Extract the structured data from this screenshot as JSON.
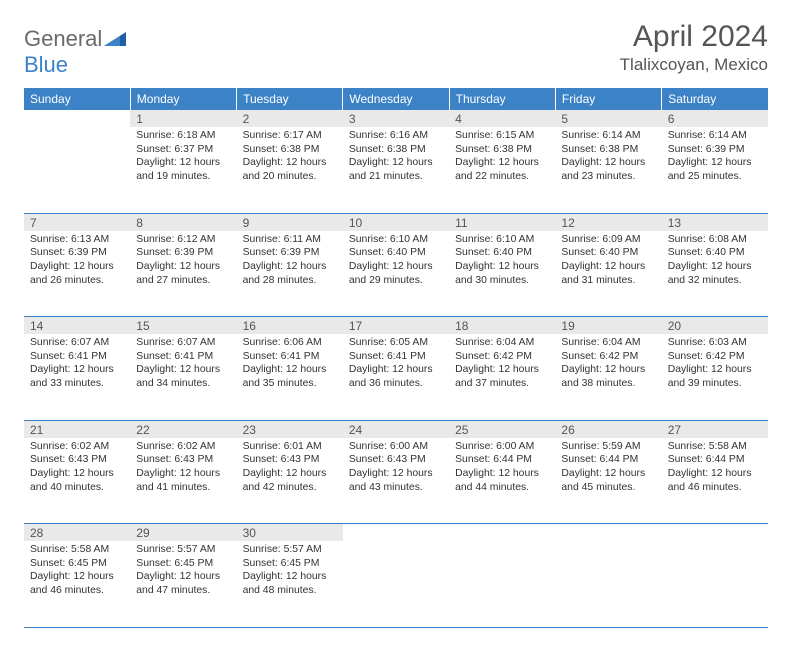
{
  "brand": {
    "part1": "General",
    "part2": "Blue"
  },
  "title": "April 2024",
  "location": "Tlalixcoyan, Mexico",
  "header_bg": "#3c82c7",
  "daynum_bg": "#e9e9e9",
  "rule_color": "#3c82c7",
  "weekdays": [
    "Sunday",
    "Monday",
    "Tuesday",
    "Wednesday",
    "Thursday",
    "Friday",
    "Saturday"
  ],
  "weeks": [
    [
      null,
      {
        "n": "1",
        "sr": "Sunrise: 6:18 AM",
        "ss": "Sunset: 6:37 PM",
        "d1": "Daylight: 12 hours",
        "d2": "and 19 minutes."
      },
      {
        "n": "2",
        "sr": "Sunrise: 6:17 AM",
        "ss": "Sunset: 6:38 PM",
        "d1": "Daylight: 12 hours",
        "d2": "and 20 minutes."
      },
      {
        "n": "3",
        "sr": "Sunrise: 6:16 AM",
        "ss": "Sunset: 6:38 PM",
        "d1": "Daylight: 12 hours",
        "d2": "and 21 minutes."
      },
      {
        "n": "4",
        "sr": "Sunrise: 6:15 AM",
        "ss": "Sunset: 6:38 PM",
        "d1": "Daylight: 12 hours",
        "d2": "and 22 minutes."
      },
      {
        "n": "5",
        "sr": "Sunrise: 6:14 AM",
        "ss": "Sunset: 6:38 PM",
        "d1": "Daylight: 12 hours",
        "d2": "and 23 minutes."
      },
      {
        "n": "6",
        "sr": "Sunrise: 6:14 AM",
        "ss": "Sunset: 6:39 PM",
        "d1": "Daylight: 12 hours",
        "d2": "and 25 minutes."
      }
    ],
    [
      {
        "n": "7",
        "sr": "Sunrise: 6:13 AM",
        "ss": "Sunset: 6:39 PM",
        "d1": "Daylight: 12 hours",
        "d2": "and 26 minutes."
      },
      {
        "n": "8",
        "sr": "Sunrise: 6:12 AM",
        "ss": "Sunset: 6:39 PM",
        "d1": "Daylight: 12 hours",
        "d2": "and 27 minutes."
      },
      {
        "n": "9",
        "sr": "Sunrise: 6:11 AM",
        "ss": "Sunset: 6:39 PM",
        "d1": "Daylight: 12 hours",
        "d2": "and 28 minutes."
      },
      {
        "n": "10",
        "sr": "Sunrise: 6:10 AM",
        "ss": "Sunset: 6:40 PM",
        "d1": "Daylight: 12 hours",
        "d2": "and 29 minutes."
      },
      {
        "n": "11",
        "sr": "Sunrise: 6:10 AM",
        "ss": "Sunset: 6:40 PM",
        "d1": "Daylight: 12 hours",
        "d2": "and 30 minutes."
      },
      {
        "n": "12",
        "sr": "Sunrise: 6:09 AM",
        "ss": "Sunset: 6:40 PM",
        "d1": "Daylight: 12 hours",
        "d2": "and 31 minutes."
      },
      {
        "n": "13",
        "sr": "Sunrise: 6:08 AM",
        "ss": "Sunset: 6:40 PM",
        "d1": "Daylight: 12 hours",
        "d2": "and 32 minutes."
      }
    ],
    [
      {
        "n": "14",
        "sr": "Sunrise: 6:07 AM",
        "ss": "Sunset: 6:41 PM",
        "d1": "Daylight: 12 hours",
        "d2": "and 33 minutes."
      },
      {
        "n": "15",
        "sr": "Sunrise: 6:07 AM",
        "ss": "Sunset: 6:41 PM",
        "d1": "Daylight: 12 hours",
        "d2": "and 34 minutes."
      },
      {
        "n": "16",
        "sr": "Sunrise: 6:06 AM",
        "ss": "Sunset: 6:41 PM",
        "d1": "Daylight: 12 hours",
        "d2": "and 35 minutes."
      },
      {
        "n": "17",
        "sr": "Sunrise: 6:05 AM",
        "ss": "Sunset: 6:41 PM",
        "d1": "Daylight: 12 hours",
        "d2": "and 36 minutes."
      },
      {
        "n": "18",
        "sr": "Sunrise: 6:04 AM",
        "ss": "Sunset: 6:42 PM",
        "d1": "Daylight: 12 hours",
        "d2": "and 37 minutes."
      },
      {
        "n": "19",
        "sr": "Sunrise: 6:04 AM",
        "ss": "Sunset: 6:42 PM",
        "d1": "Daylight: 12 hours",
        "d2": "and 38 minutes."
      },
      {
        "n": "20",
        "sr": "Sunrise: 6:03 AM",
        "ss": "Sunset: 6:42 PM",
        "d1": "Daylight: 12 hours",
        "d2": "and 39 minutes."
      }
    ],
    [
      {
        "n": "21",
        "sr": "Sunrise: 6:02 AM",
        "ss": "Sunset: 6:43 PM",
        "d1": "Daylight: 12 hours",
        "d2": "and 40 minutes."
      },
      {
        "n": "22",
        "sr": "Sunrise: 6:02 AM",
        "ss": "Sunset: 6:43 PM",
        "d1": "Daylight: 12 hours",
        "d2": "and 41 minutes."
      },
      {
        "n": "23",
        "sr": "Sunrise: 6:01 AM",
        "ss": "Sunset: 6:43 PM",
        "d1": "Daylight: 12 hours",
        "d2": "and 42 minutes."
      },
      {
        "n": "24",
        "sr": "Sunrise: 6:00 AM",
        "ss": "Sunset: 6:43 PM",
        "d1": "Daylight: 12 hours",
        "d2": "and 43 minutes."
      },
      {
        "n": "25",
        "sr": "Sunrise: 6:00 AM",
        "ss": "Sunset: 6:44 PM",
        "d1": "Daylight: 12 hours",
        "d2": "and 44 minutes."
      },
      {
        "n": "26",
        "sr": "Sunrise: 5:59 AM",
        "ss": "Sunset: 6:44 PM",
        "d1": "Daylight: 12 hours",
        "d2": "and 45 minutes."
      },
      {
        "n": "27",
        "sr": "Sunrise: 5:58 AM",
        "ss": "Sunset: 6:44 PM",
        "d1": "Daylight: 12 hours",
        "d2": "and 46 minutes."
      }
    ],
    [
      {
        "n": "28",
        "sr": "Sunrise: 5:58 AM",
        "ss": "Sunset: 6:45 PM",
        "d1": "Daylight: 12 hours",
        "d2": "and 46 minutes."
      },
      {
        "n": "29",
        "sr": "Sunrise: 5:57 AM",
        "ss": "Sunset: 6:45 PM",
        "d1": "Daylight: 12 hours",
        "d2": "and 47 minutes."
      },
      {
        "n": "30",
        "sr": "Sunrise: 5:57 AM",
        "ss": "Sunset: 6:45 PM",
        "d1": "Daylight: 12 hours",
        "d2": "and 48 minutes."
      },
      null,
      null,
      null,
      null
    ]
  ]
}
